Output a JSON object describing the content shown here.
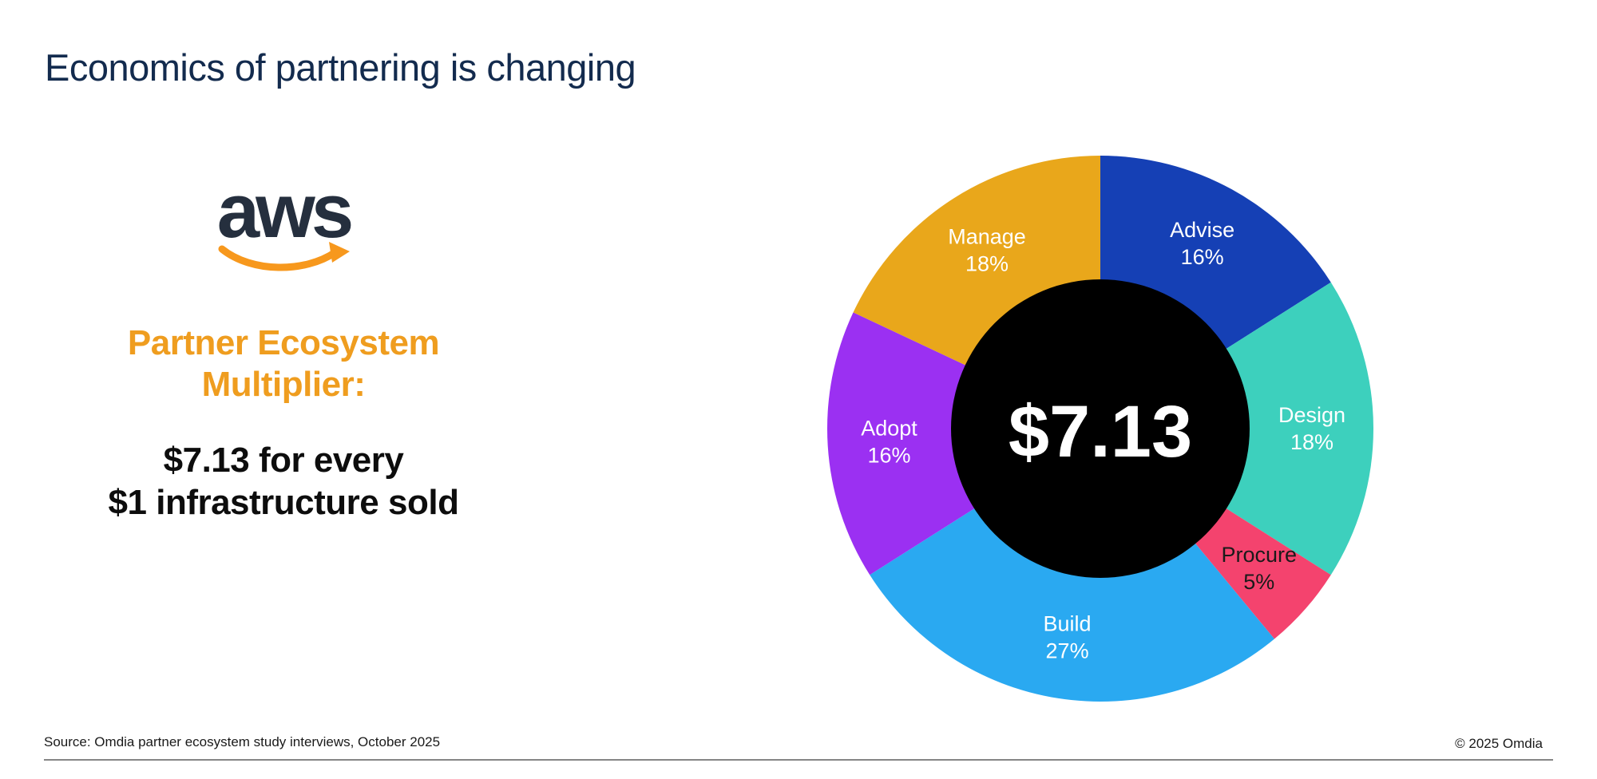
{
  "header": {
    "title": "Economics of partnering is changing",
    "title_color": "#132b4e"
  },
  "left_panel": {
    "aws_logo": {
      "text": "aws",
      "text_color": "#252f3e",
      "smile_color": "#f7981d"
    },
    "heading": {
      "line1": "Partner Ecosystem",
      "line2": "Multiplier:",
      "color": "#ef9d1f"
    },
    "statement": {
      "line1": "$7.13 for every",
      "line2": "$1 infrastructure sold",
      "color": "#0d0d0d"
    }
  },
  "chart_data": {
    "type": "pie",
    "variant": "donut",
    "start_angle_deg": 0,
    "direction": "clockwise",
    "center_label": "$7.13",
    "center_circle_color": "#000000",
    "center_label_color": "#ffffff",
    "segments": [
      {
        "label": "Advise",
        "value": 16,
        "pct": "16%",
        "color": "#1540b5",
        "label_color": "#ffffff"
      },
      {
        "label": "Design",
        "value": 18,
        "pct": "18%",
        "color": "#3dd0bd",
        "label_color": "#ffffff"
      },
      {
        "label": "Procure",
        "value": 5,
        "pct": "5%",
        "color": "#f4436e",
        "label_color": "#1a1a1a"
      },
      {
        "label": "Build",
        "value": 27,
        "pct": "27%",
        "color": "#2aa9f1",
        "label_color": "#ffffff"
      },
      {
        "label": "Adopt",
        "value": 16,
        "pct": "16%",
        "color": "#9b30f2",
        "label_color": "#ffffff"
      },
      {
        "label": "Manage",
        "value": 18,
        "pct": "18%",
        "color": "#e9a71b",
        "label_color": "#ffffff"
      }
    ]
  },
  "footer": {
    "source": "Source: Omdia partner ecosystem study interviews, October 2025",
    "copyright": "© 2025 Omdia"
  }
}
